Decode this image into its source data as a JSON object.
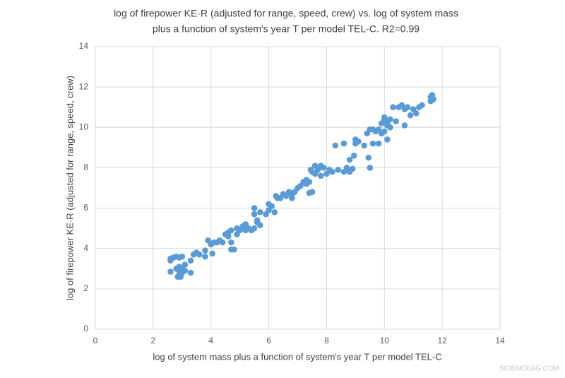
{
  "chart_data": {
    "type": "scatter",
    "title": [
      "log of firepower KE·R  (adjusted for range, speed, crew) vs. log  of system mass",
      "plus a function of system's year T per model TEL-C. R2=0.99"
    ],
    "xlabel": "log  of system mass plus  a function of system's year T per model TEL-C",
    "ylabel": "log of firepower KE·R  (adjusted for range, speed, crew)",
    "watermark": "SCIENCEAG.COM",
    "color": "#5b9bd5",
    "grid": true,
    "xlim": [
      0,
      14
    ],
    "xticks": [
      0,
      2,
      4,
      6,
      8,
      10,
      12,
      14
    ],
    "ylim": [
      0,
      14
    ],
    "yticks": [
      0,
      2,
      4,
      6,
      8,
      10,
      12,
      14
    ],
    "x": [
      2.6,
      2.6,
      2.7,
      2.8,
      2.9,
      3.0,
      2.6,
      2.85,
      2.9,
      2.95,
      3.0,
      3.1,
      3.1,
      2.9,
      2.8,
      3.3,
      3.0,
      2.9,
      3.3,
      3.4,
      3.5,
      3.6,
      3.8,
      3.8,
      3.9,
      4.0,
      4.05,
      4.1,
      4.2,
      4.3,
      4.4,
      4.5,
      4.6,
      4.6,
      4.7,
      4.7,
      4.7,
      4.8,
      4.9,
      4.9,
      5.0,
      5.1,
      5.2,
      5.3,
      5.2,
      5.4,
      5.5,
      5.5,
      5.5,
      5.6,
      5.6,
      5.7,
      5.7,
      5.9,
      6.0,
      6.0,
      6.1,
      6.2,
      6.25,
      6.3,
      6.4,
      6.5,
      6.6,
      6.7,
      6.8,
      6.8,
      6.9,
      7.0,
      7.1,
      7.2,
      7.3,
      7.3,
      7.4,
      7.5,
      7.4,
      7.45,
      7.6,
      7.6,
      7.7,
      7.8,
      7.8,
      7.9,
      7.5,
      8.0,
      8.1,
      8.2,
      8.3,
      8.4,
      8.6,
      8.6,
      8.7,
      8.8,
      8.8,
      8.9,
      8.95,
      9.0,
      9.0,
      9.1,
      9.3,
      9.4,
      9.45,
      9.5,
      9.5,
      9.6,
      9.6,
      9.7,
      9.8,
      9.8,
      9.9,
      9.9,
      10.0,
      10.0,
      10.0,
      10.1,
      10.1,
      10.1,
      10.2,
      10.2,
      10.3,
      10.4,
      10.5,
      10.6,
      10.7,
      10.7,
      10.8,
      10.9,
      11.0,
      11.1,
      11.2,
      11.3,
      11.6,
      11.6,
      11.65,
      11.7
    ],
    "y": [
      3.5,
      3.4,
      3.55,
      3.6,
      3.55,
      3.6,
      2.85,
      2.6,
      2.7,
      2.6,
      2.8,
      2.9,
      3.2,
      3.1,
      3.0,
      2.8,
      3.0,
      2.9,
      3.4,
      3.7,
      3.8,
      3.7,
      3.9,
      3.6,
      4.4,
      4.2,
      3.75,
      4.3,
      4.3,
      4.4,
      4.3,
      4.7,
      4.8,
      4.6,
      4.9,
      4.3,
      3.95,
      3.95,
      5.0,
      4.7,
      4.9,
      5.1,
      4.9,
      5.0,
      5.2,
      4.9,
      5.7,
      6.0,
      5.0,
      5.3,
      5.4,
      5.8,
      5.15,
      5.7,
      6.2,
      5.9,
      6.1,
      5.8,
      6.6,
      6.5,
      6.5,
      6.7,
      6.6,
      6.8,
      6.7,
      6.5,
      6.8,
      7.0,
      7.1,
      7.3,
      7.2,
      7.4,
      7.3,
      6.8,
      6.75,
      7.9,
      8.1,
      7.7,
      7.9,
      8.1,
      7.6,
      8.0,
      7.8,
      7.7,
      7.9,
      7.8,
      9.1,
      7.9,
      7.8,
      9.2,
      8.0,
      7.8,
      8.4,
      7.95,
      8.6,
      9.4,
      9.2,
      9.3,
      9.1,
      9.7,
      8.5,
      8.0,
      9.9,
      9.9,
      9.2,
      9.8,
      9.2,
      9.9,
      9.7,
      10.2,
      10.4,
      10.5,
      9.8,
      9.4,
      10.1,
      10.2,
      10.0,
      10.4,
      11.0,
      10.3,
      11.0,
      11.1,
      10.1,
      10.9,
      11.0,
      10.6,
      10.9,
      10.7,
      11.0,
      11.1,
      11.3,
      11.5,
      11.6,
      11.4
    ]
  }
}
